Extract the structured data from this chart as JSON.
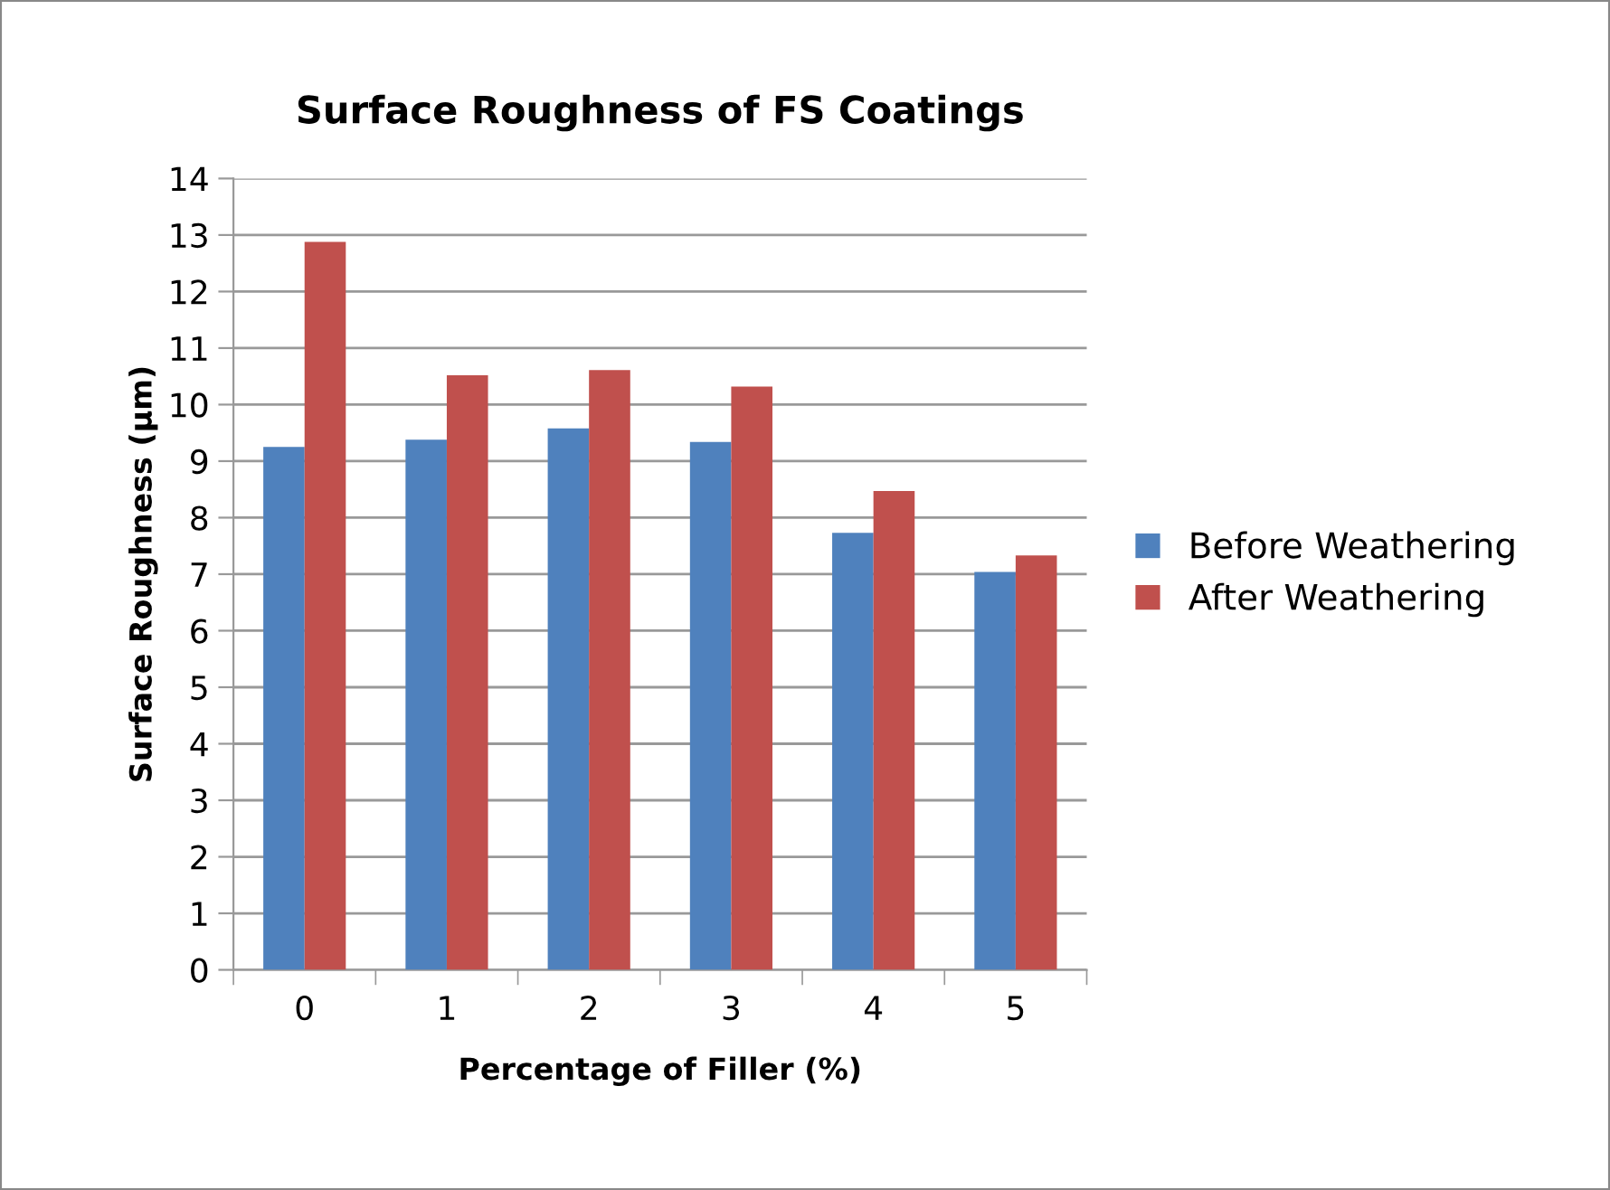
{
  "chart_data": {
    "type": "bar",
    "title": "Surface Roughness of FS Coatings",
    "xlabel": "Percentage of Filler (%)",
    "ylabel": "Surface Roughness (µm)",
    "categories": [
      "0",
      "1",
      "2",
      "3",
      "4",
      "5"
    ],
    "series": [
      {
        "name": "Before Weathering",
        "color": "#4f81bd",
        "values": [
          9.25,
          9.38,
          9.58,
          9.34,
          7.73,
          7.04
        ]
      },
      {
        "name": "After Weathering",
        "color": "#c0504d",
        "values": [
          12.88,
          10.52,
          10.61,
          10.32,
          8.47,
          7.33
        ]
      }
    ],
    "ylim": [
      0,
      14
    ],
    "yticks": [
      0,
      1,
      2,
      3,
      4,
      5,
      6,
      7,
      8,
      9,
      10,
      11,
      12,
      13,
      14
    ],
    "grid": "y",
    "legend": "right"
  }
}
